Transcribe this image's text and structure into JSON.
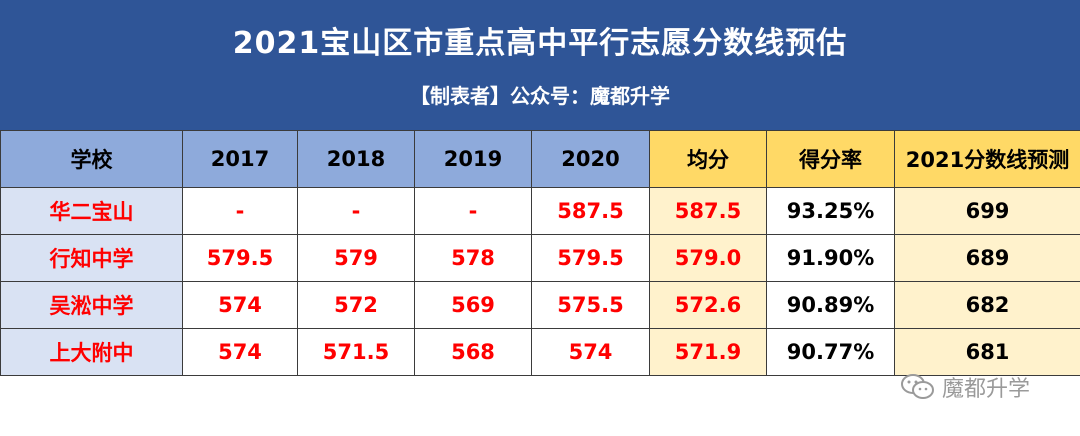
{
  "header": {
    "title": "2021宝山区市重点高中平行志愿分数线预估",
    "subtitle": "【制表者】公众号：魔都升学"
  },
  "table": {
    "columns": [
      "学校",
      "2017",
      "2018",
      "2019",
      "2020",
      "均分",
      "得分率",
      "2021分数线预测"
    ],
    "rows": [
      {
        "school": "华二宝山",
        "y2017": "-",
        "y2018": "-",
        "y2019": "-",
        "y2020": "587.5",
        "avg": "587.5",
        "rate": "93.25%",
        "pred": "699"
      },
      {
        "school": "行知中学",
        "y2017": "579.5",
        "y2018": "579",
        "y2019": "578",
        "y2020": "579.5",
        "avg": "579.0",
        "rate": "91.90%",
        "pred": "689"
      },
      {
        "school": "吴淞中学",
        "y2017": "574",
        "y2018": "572",
        "y2019": "569",
        "y2020": "575.5",
        "avg": "572.6",
        "rate": "90.89%",
        "pred": "682"
      },
      {
        "school": "上大附中",
        "y2017": "574",
        "y2018": "571.5",
        "y2019": "568",
        "y2020": "574",
        "avg": "571.9",
        "rate": "90.77%",
        "pred": "681"
      }
    ]
  },
  "watermark": {
    "icon": "wechat-icon",
    "text": "魔都升学"
  },
  "colors": {
    "banner": "#2f5597",
    "header_blue": "#8eaadb",
    "header_yellow": "#ffd966",
    "school_cell": "#d9e2f3",
    "avg_cell": "#fff2cc",
    "value_red": "#ff0000"
  }
}
